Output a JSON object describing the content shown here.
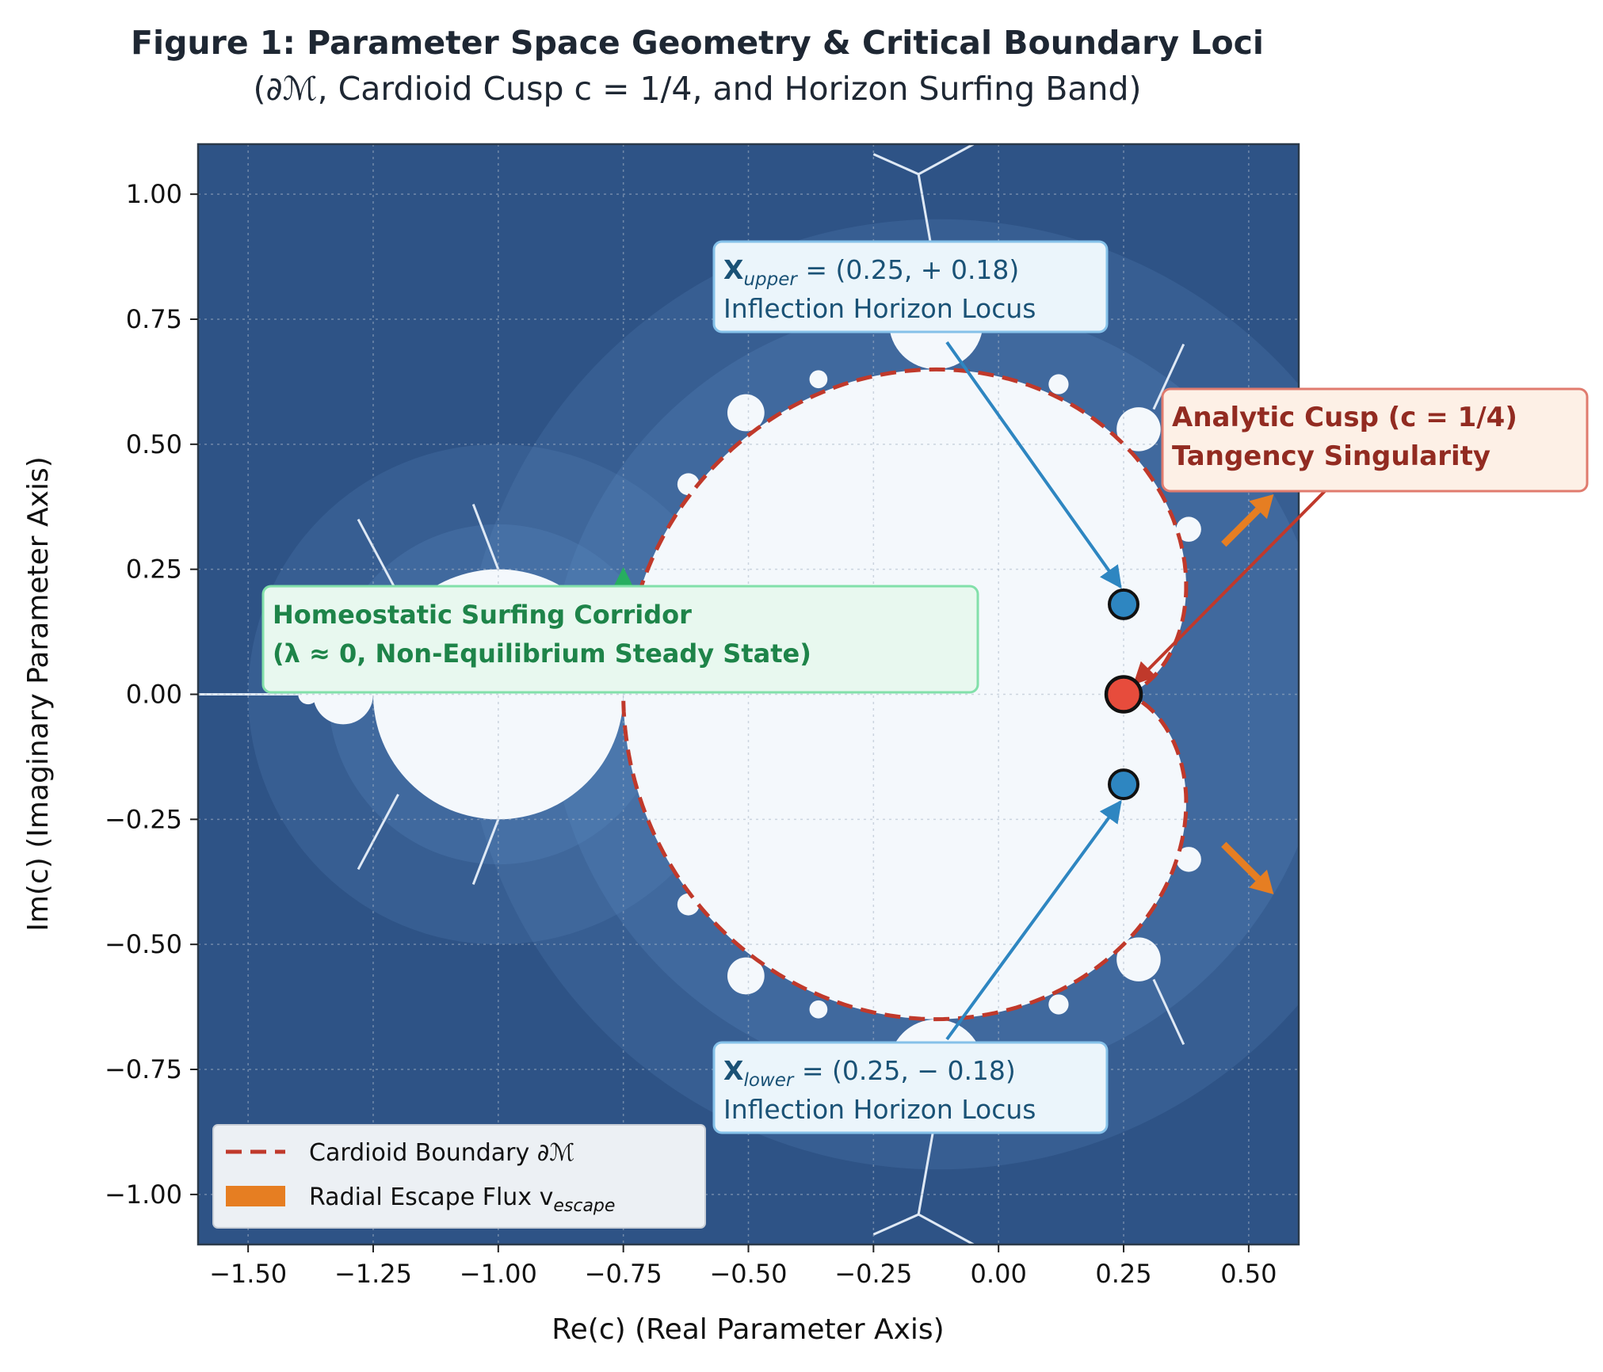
{
  "figure": {
    "title": "Figure 1: Parameter Space Geometry & Critical Boundary Loci",
    "subtitle": "(∂ℳ, Cardioid Cusp c = 1/4,  and Horizon Surfing Band)"
  },
  "chart_data": {
    "type": "scatter",
    "xlabel": "Re(c) (Real Parameter Axis)",
    "ylabel": "Im(c) (Imaginary Parameter Axis)",
    "xlim": [
      -1.6,
      0.6
    ],
    "ylim": [
      -1.1,
      1.1
    ],
    "xticks": [
      -1.5,
      -1.25,
      -1.0,
      -0.75,
      -0.5,
      -0.25,
      0.0,
      0.25,
      0.5
    ],
    "xtick_labels": [
      "−1.50",
      "−1.25",
      "−1.00",
      "−0.75",
      "−0.50",
      "−0.25",
      "0.00",
      "0.25",
      "0.50"
    ],
    "yticks": [
      1.0,
      0.75,
      0.5,
      0.25,
      0.0,
      -0.25,
      -0.5,
      -0.75,
      -1.0
    ],
    "ytick_labels": [
      "1.00",
      "0.75",
      "0.50",
      "0.25",
      "0.00",
      "−0.25",
      "−0.50",
      "−0.75",
      "−1.00"
    ],
    "grid": true,
    "background": "Mandelbrot set escape-time field",
    "boundary_curve": {
      "name": "Cardioid Boundary ∂ℳ",
      "equation": "c = e^{it}/2 - e^{2it}/4",
      "style": "dashed",
      "color": "#c0392b"
    },
    "points": [
      {
        "x": 0.25,
        "y": 0.18,
        "color": "#2e86c1"
      },
      {
        "x": 0.25,
        "y": 0.0,
        "color": "#e74c3c"
      },
      {
        "x": 0.25,
        "y": -0.18,
        "color": "#2e86c1"
      }
    ],
    "flux_arrows": [
      {
        "from": [
          0.45,
          0.3
        ],
        "to": [
          0.55,
          0.4
        ]
      },
      {
        "from": [
          0.45,
          -0.3
        ],
        "to": [
          0.55,
          -0.4
        ]
      }
    ],
    "annotations": [
      {
        "id": "upper",
        "line1_bold": "X",
        "line1_sub": "upper",
        "line1_rest": " = (0.25,  + 0.18)",
        "line2": "Inflection Horizon Locus",
        "target": [
          0.25,
          0.18
        ],
        "text_color": "#1a5276",
        "box_fill": "#ebf5fb",
        "box_edge": "#85c1e9"
      },
      {
        "id": "lower",
        "line1_bold": "X",
        "line1_sub": "lower",
        "line1_rest": " = (0.25,  − 0.18)",
        "line2": "Inflection Horizon Locus",
        "target": [
          0.25,
          -0.18
        ],
        "text_color": "#1a5276",
        "box_fill": "#ebf5fb",
        "box_edge": "#85c1e9"
      },
      {
        "id": "cusp",
        "line1": "Analytic Cusp (c = 1/4)",
        "line2": "Tangency Singularity",
        "target": [
          0.25,
          0.0
        ],
        "text_color": "#922b21",
        "box_fill": "#fdf0e6",
        "box_edge": "#e07b6e"
      },
      {
        "id": "corridor",
        "line1": "Homeostatic Surfing Corridor",
        "line2": "(λ ≈ 0, Non-Equilibrium Steady State)",
        "target": [
          -0.75,
          0.25
        ],
        "text_color": "#1e8449",
        "box_fill": "#e8f8ef",
        "box_edge": "#82e0aa"
      }
    ],
    "legend": {
      "placement": "lower-left",
      "entries": [
        {
          "label": "Cardioid Boundary ∂ℳ",
          "kind": "dashed-line",
          "color": "#c0392b"
        },
        {
          "label": "Radial Escape Flux v",
          "sub": "escape",
          "kind": "patch",
          "color": "#e67e22"
        }
      ]
    }
  },
  "colors": {
    "field_dark": "#2e5386",
    "field_light": "#f4f8fc",
    "boundary": "#c0392b",
    "upper_lower_point": "#2e86c1",
    "cusp_point": "#e74c3c",
    "flux": "#e67e22"
  }
}
